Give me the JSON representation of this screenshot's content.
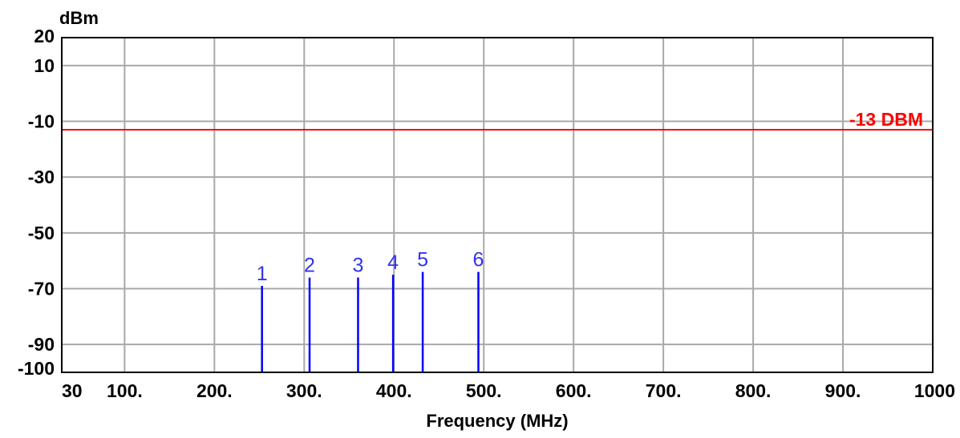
{
  "chart_data": {
    "type": "bar",
    "title": "",
    "xlabel": "Frequency (MHz)",
    "ylabel": "dBm",
    "xlim": [
      30,
      1000
    ],
    "ylim": [
      -100,
      20
    ],
    "grid": true,
    "x_ticks": [
      {
        "value": 30,
        "label": "30"
      },
      {
        "value": 100,
        "label": "100."
      },
      {
        "value": 200,
        "label": "200."
      },
      {
        "value": 300,
        "label": "300."
      },
      {
        "value": 400,
        "label": "400."
      },
      {
        "value": 500,
        "label": "500."
      },
      {
        "value": 600,
        "label": "600."
      },
      {
        "value": 700,
        "label": "700."
      },
      {
        "value": 800,
        "label": "800."
      },
      {
        "value": 900,
        "label": "900."
      },
      {
        "value": 1000,
        "label": "1000"
      }
    ],
    "y_ticks": [
      {
        "value": 20,
        "label": "20"
      },
      {
        "value": 10,
        "label": "10"
      },
      {
        "value": -10,
        "label": "-10"
      },
      {
        "value": -30,
        "label": "-30"
      },
      {
        "value": -50,
        "label": "-50"
      },
      {
        "value": -70,
        "label": "-70"
      },
      {
        "value": -90,
        "label": "-90"
      },
      {
        "value": -100,
        "label": "-100"
      }
    ],
    "limit_line": {
      "value": -13,
      "label": "-13 DBM",
      "color": "#ff0000"
    },
    "markers": [
      {
        "label": "1",
        "x": 253,
        "y": -69
      },
      {
        "label": "2",
        "x": 306,
        "y": -66
      },
      {
        "label": "3",
        "x": 360,
        "y": -66
      },
      {
        "label": "4",
        "x": 399,
        "y": -65
      },
      {
        "label": "5",
        "x": 432,
        "y": -64
      },
      {
        "label": "6",
        "x": 494,
        "y": -64
      }
    ],
    "colors": {
      "markers": "#0000ff",
      "marker_labels": "#3333ee",
      "grid": "#a8a8a8",
      "frame": "#000000"
    }
  }
}
